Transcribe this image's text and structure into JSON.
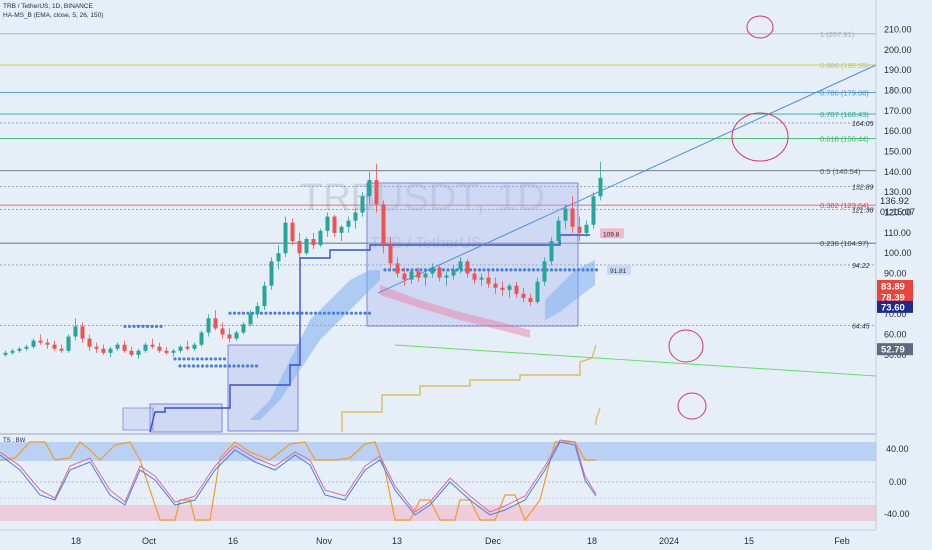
{
  "header": {
    "symbol_line": "TRB / TetherUS, 1D, BINANCE",
    "indicator_line": "HA-MS_B (EMA, close, 5, 26, 150)"
  },
  "watermark": {
    "main": "TRBUSDT, 1D",
    "sub": "TRB / TetherUS"
  },
  "oscillator_label": "TS : BW",
  "colors": {
    "background": "#e6eef7",
    "candle_up": "#26a69a",
    "candle_down": "#ef5350",
    "trendline": "#4d8fdc",
    "support_line": "#66dd66",
    "band": "#7fb0f0",
    "box_fill": "#aab8f0",
    "box_stroke": "#6c6cd8",
    "step_line": "#d8b64a",
    "circle": "#d6336c",
    "osc_pink": "#d86da6",
    "osc_blue": "#4a7fd8",
    "osc_orange": "#f29b2a"
  },
  "chart_data": {
    "type": "candlestick",
    "y_axis": {
      "ticks": [
        "210.00",
        "200.00",
        "190.00",
        "180.00",
        "170.00",
        "160.00",
        "150.00",
        "140.00",
        "130.00",
        "120.00",
        "110.00",
        "100.00",
        "90.00",
        "80.00",
        "70.00",
        "60.00",
        "50.00"
      ],
      "range": [
        46,
        213
      ]
    },
    "x_axis": {
      "ticks": [
        "18",
        "Oct",
        "16",
        "Nov",
        "13",
        "Dec",
        "18",
        "2024",
        "15",
        "Feb"
      ]
    },
    "fib_levels": [
      {
        "label": "1 (207.91)",
        "value": 207.91,
        "color": "#a0a8b4"
      },
      {
        "label": "0.886 (192.55)",
        "value": 192.55,
        "color": "#c8c830"
      },
      {
        "label": "0.786 (179.08)",
        "value": 179.08,
        "color": "#4a90d8"
      },
      {
        "label": "0.707 (168.43)",
        "value": 168.43,
        "color": "#2aa89a"
      },
      {
        "label": "0.618 (156.44)",
        "value": 156.44,
        "color": "#3cba6a"
      },
      {
        "label": "0.5 (140.54)",
        "value": 140.54,
        "color": "#505a6a"
      },
      {
        "label": "0.382 (123.64)",
        "value": 123.64,
        "color": "#e04848"
      },
      {
        "label": "0.236 (104.97)",
        "value": 104.97,
        "color": "#3a4a60"
      }
    ],
    "price_lines": [
      {
        "label": "164.05",
        "value": 164.05
      },
      {
        "label": "132.89",
        "value": 132.89
      },
      {
        "label": "121.38",
        "value": 121.38
      },
      {
        "label": "94.22",
        "value": 94.22
      },
      {
        "label": "64.45",
        "value": 64.45
      }
    ],
    "marker_labels": [
      {
        "label": "109.8",
        "value": 109.8
      },
      {
        "label": "91.81",
        "value": 91.81
      }
    ],
    "price_badges": [
      {
        "label": "83.89",
        "value": 83.89,
        "color": "#e8453c"
      },
      {
        "label": "78.39",
        "value": 78.39,
        "color": "#e8453c"
      },
      {
        "label": "73.60",
        "value": 73.6,
        "color": "#1f2a8c"
      },
      {
        "label": "52.79",
        "value": 52.79,
        "color": "#5e6a7e"
      }
    ],
    "current_price": {
      "price": "136.92",
      "countdown": "01:15:07"
    },
    "candles": [
      [
        50,
        52,
        49,
        51
      ],
      [
        51,
        53,
        50,
        52
      ],
      [
        52,
        54,
        51,
        53
      ],
      [
        53,
        55,
        52,
        54
      ],
      [
        54,
        58,
        53,
        57
      ],
      [
        57,
        60,
        55,
        56
      ],
      [
        56,
        58,
        53,
        55
      ],
      [
        55,
        57,
        52,
        53
      ],
      [
        53,
        55,
        51,
        52
      ],
      [
        52,
        60,
        51,
        59
      ],
      [
        59,
        68,
        57,
        64
      ],
      [
        64,
        66,
        56,
        58
      ],
      [
        58,
        60,
        52,
        54
      ],
      [
        54,
        56,
        51,
        53
      ],
      [
        53,
        55,
        50,
        51
      ],
      [
        51,
        54,
        49,
        53
      ],
      [
        53,
        56,
        52,
        55
      ],
      [
        55,
        57,
        51,
        52
      ],
      [
        52,
        54,
        49,
        50
      ],
      [
        50,
        53,
        48,
        52
      ],
      [
        52,
        56,
        51,
        55
      ],
      [
        55,
        58,
        53,
        54
      ],
      [
        54,
        56,
        51,
        52
      ],
      [
        52,
        54,
        50,
        51
      ],
      [
        51,
        53,
        49,
        52
      ],
      [
        52,
        55,
        51,
        54
      ],
      [
        54,
        57,
        52,
        53
      ],
      [
        53,
        56,
        52,
        55
      ],
      [
        55,
        62,
        54,
        61
      ],
      [
        61,
        70,
        59,
        68
      ],
      [
        68,
        72,
        62,
        63
      ],
      [
        63,
        66,
        58,
        60
      ],
      [
        60,
        63,
        56,
        58
      ],
      [
        58,
        62,
        57,
        61
      ],
      [
        61,
        66,
        60,
        65
      ],
      [
        65,
        72,
        64,
        70
      ],
      [
        70,
        76,
        68,
        74
      ],
      [
        74,
        86,
        72,
        84
      ],
      [
        84,
        98,
        82,
        96
      ],
      [
        96,
        104,
        92,
        100
      ],
      [
        100,
        118,
        98,
        115
      ],
      [
        115,
        117,
        104,
        106
      ],
      [
        106,
        110,
        98,
        100
      ],
      [
        100,
        108,
        99,
        107
      ],
      [
        107,
        110,
        102,
        104
      ],
      [
        104,
        112,
        103,
        111
      ],
      [
        111,
        120,
        108,
        118
      ],
      [
        118,
        119,
        108,
        110
      ],
      [
        110,
        114,
        106,
        113
      ],
      [
        113,
        118,
        110,
        116
      ],
      [
        116,
        122,
        112,
        120
      ],
      [
        120,
        130,
        118,
        128
      ],
      [
        128,
        140,
        124,
        136
      ],
      [
        136,
        144,
        120,
        124
      ],
      [
        124,
        126,
        100,
        104
      ],
      [
        104,
        108,
        92,
        95
      ],
      [
        95,
        98,
        88,
        90
      ],
      [
        90,
        93,
        84,
        87
      ],
      [
        87,
        92,
        85,
        91
      ],
      [
        91,
        93,
        86,
        88
      ],
      [
        88,
        92,
        84,
        90
      ],
      [
        90,
        95,
        88,
        93
      ],
      [
        93,
        94,
        86,
        88
      ],
      [
        88,
        91,
        84,
        89
      ],
      [
        89,
        94,
        87,
        92
      ],
      [
        92,
        98,
        90,
        96
      ],
      [
        96,
        97,
        88,
        90
      ],
      [
        90,
        92,
        85,
        87
      ],
      [
        87,
        90,
        84,
        88
      ],
      [
        88,
        91,
        83,
        85
      ],
      [
        85,
        88,
        80,
        83
      ],
      [
        83,
        86,
        79,
        82
      ],
      [
        82,
        85,
        78,
        84
      ],
      [
        84,
        86,
        78,
        80
      ],
      [
        80,
        83,
        76,
        78
      ],
      [
        78,
        80,
        74,
        76
      ],
      [
        76,
        88,
        75,
        86
      ],
      [
        86,
        98,
        84,
        96
      ],
      [
        96,
        108,
        94,
        106
      ],
      [
        106,
        118,
        104,
        116
      ],
      [
        116,
        124,
        112,
        122
      ],
      [
        122,
        128,
        110,
        113
      ],
      [
        113,
        118,
        106,
        110
      ],
      [
        110,
        116,
        108,
        114
      ],
      [
        114,
        130,
        112,
        128
      ],
      [
        128,
        145,
        126,
        137
      ]
    ]
  }
}
